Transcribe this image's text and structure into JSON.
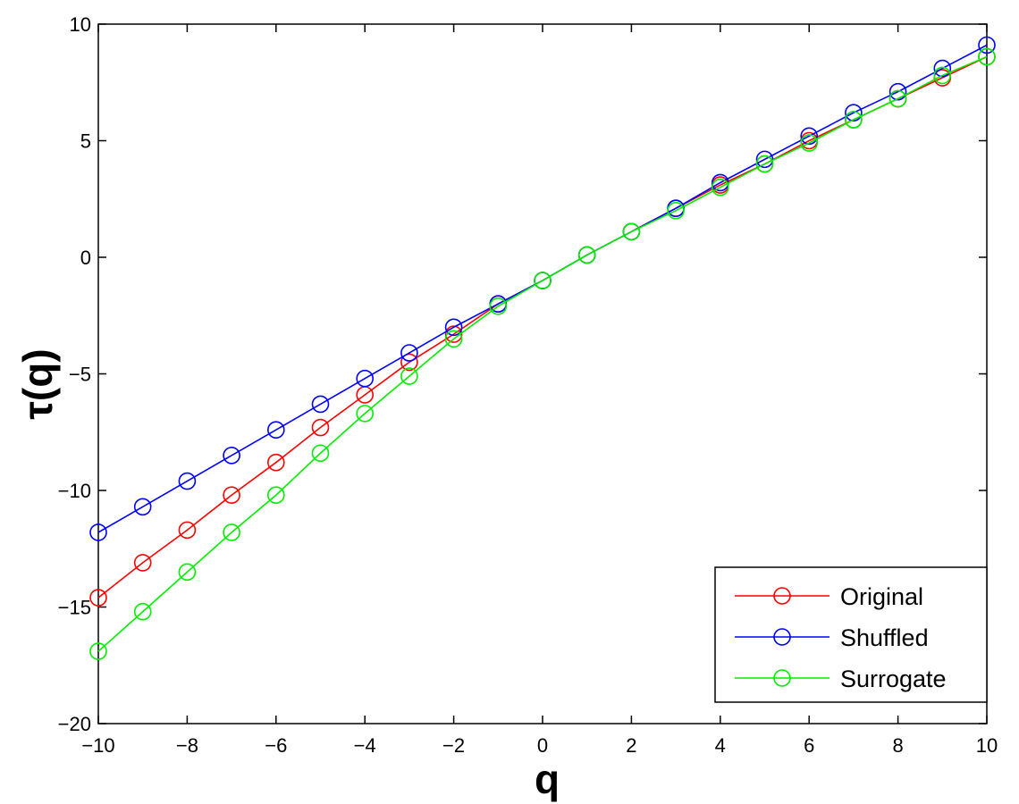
{
  "chart_data": {
    "type": "line",
    "title": "",
    "xlabel": "q",
    "ylabel": "τ(q)",
    "xlim": [
      -10,
      10
    ],
    "ylim": [
      -20,
      10
    ],
    "xticks": [
      -10,
      -8,
      -6,
      -4,
      -2,
      0,
      2,
      4,
      6,
      8,
      10
    ],
    "yticks": [
      -20,
      -15,
      -10,
      -5,
      0,
      5,
      10
    ],
    "xtick_labels": [
      "−10",
      "−8",
      "−6",
      "−4",
      "−2",
      "0",
      "2",
      "4",
      "6",
      "8",
      "10"
    ],
    "ytick_labels": [
      "−20",
      "−15",
      "−10",
      "−5",
      "0",
      "5",
      "10"
    ],
    "grid": false,
    "legend_position": "bottom-right",
    "marker": "circle-open",
    "x": [
      -10,
      -9,
      -8,
      -7,
      -6,
      -5,
      -4,
      -3,
      -2,
      -1,
      0,
      1,
      2,
      3,
      4,
      5,
      6,
      7,
      8,
      9,
      10
    ],
    "series": [
      {
        "name": "Original",
        "color": "#ff0000",
        "values": [
          -14.6,
          -13.1,
          -11.7,
          -10.2,
          -8.8,
          -7.3,
          -5.9,
          -4.5,
          -3.3,
          -2.0,
          -1.0,
          0.1,
          1.1,
          2.1,
          3.1,
          4.0,
          5.0,
          5.9,
          6.8,
          7.7,
          8.6
        ]
      },
      {
        "name": "Shuffled",
        "color": "#0000ff",
        "values": [
          -11.8,
          -10.7,
          -9.6,
          -8.5,
          -7.4,
          -6.3,
          -5.2,
          -4.1,
          -3.0,
          -2.0,
          -1.0,
          0.1,
          1.1,
          2.1,
          3.2,
          4.2,
          5.2,
          6.2,
          7.1,
          8.1,
          9.1
        ]
      },
      {
        "name": "Surrogate",
        "color": "#00ee00",
        "values": [
          -16.9,
          -15.2,
          -13.5,
          -11.8,
          -10.2,
          -8.4,
          -6.7,
          -5.1,
          -3.5,
          -2.1,
          -1.0,
          0.1,
          1.1,
          2.0,
          3.0,
          4.0,
          4.9,
          5.9,
          6.8,
          7.8,
          8.6
        ]
      }
    ]
  }
}
